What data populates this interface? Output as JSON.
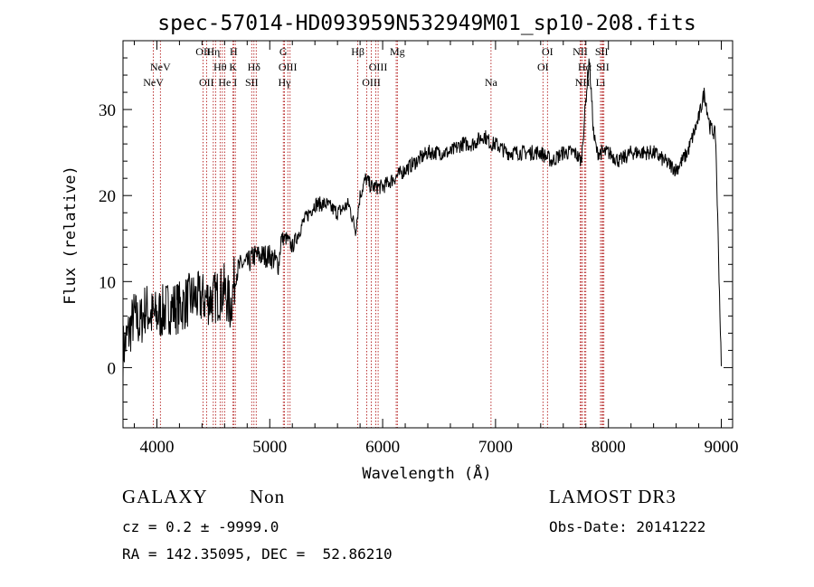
{
  "chart_data": {
    "type": "line",
    "title": "spec-57014-HD093959N532949M01_sp10-208.fits",
    "xlabel": "Wavelength (Å)",
    "ylabel": "Flux (relative)",
    "xlim": [
      3700,
      9100
    ],
    "ylim": [
      -7,
      38
    ],
    "xticks": [
      4000,
      5000,
      6000,
      7000,
      8000,
      9000
    ],
    "yticks": [
      0,
      10,
      20,
      30
    ],
    "series": [
      {
        "name": "spectrum",
        "x": [
          3700,
          3750,
          3800,
          3850,
          3900,
          3950,
          4000,
          4100,
          4200,
          4300,
          4400,
          4500,
          4600,
          4650,
          4700,
          4750,
          4800,
          4860,
          4900,
          5000,
          5080,
          5100,
          5150,
          5200,
          5300,
          5400,
          5500,
          5600,
          5700,
          5760,
          5800,
          5850,
          5900,
          6000,
          6100,
          6200,
          6300,
          6400,
          6500,
          6600,
          6700,
          6800,
          6900,
          6960,
          7000,
          7100,
          7200,
          7300,
          7400,
          7500,
          7600,
          7700,
          7760,
          7800,
          7830,
          7870,
          7900,
          8000,
          8100,
          8200,
          8300,
          8400,
          8500,
          8600,
          8700,
          8800,
          8850,
          8900,
          8950,
          9000
        ],
        "values": [
          2,
          4,
          6,
          5,
          7,
          6,
          6,
          7,
          7,
          8,
          8,
          8,
          9,
          7,
          11,
          12,
          12,
          13,
          13,
          13,
          12,
          15,
          15,
          14,
          17,
          19,
          19,
          18,
          19,
          16,
          20,
          22,
          21,
          21,
          22,
          23,
          24,
          25,
          25,
          25,
          26,
          26,
          27,
          26,
          26,
          25,
          25,
          25,
          25,
          24,
          25,
          25,
          24,
          31,
          36,
          27,
          25,
          25,
          24,
          25,
          25,
          25,
          24,
          23,
          25,
          29,
          32,
          28,
          27,
          0
        ]
      }
    ],
    "lines": [
      {
        "label": "NeV",
        "x": 3969,
        "row": 4
      },
      {
        "label": "NeV",
        "x": 4031,
        "row": 2
      },
      {
        "label": "OII",
        "x": 4410,
        "row": 1
      },
      {
        "label": "OII",
        "x": 4440,
        "row": 4
      },
      {
        "label": "Hη",
        "x": 4500,
        "row": 1
      },
      {
        "label": "Hθ",
        "x": 4560,
        "row": 2
      },
      {
        "label": "He",
        "x": 4600,
        "row": 4
      },
      {
        "label": "H",
        "x": 4680,
        "row": 1
      },
      {
        "label": "K",
        "x": 4675,
        "row": 2
      },
      {
        "label": "I",
        "x": 4695,
        "row": 4
      },
      {
        "label": "Hδ",
        "x": 4860,
        "row": 2
      },
      {
        "label": "SII",
        "x": 4840,
        "row": 4
      },
      {
        "label": "G",
        "x": 5120,
        "row": 1
      },
      {
        "label": "OIII",
        "x": 5160,
        "row": 2
      },
      {
        "label": "Hγ",
        "x": 5130,
        "row": 4
      },
      {
        "label": "Hβ",
        "x": 5780,
        "row": 1
      },
      {
        "label": "OIII",
        "x": 5960,
        "row": 2
      },
      {
        "label": "OIII",
        "x": 5900,
        "row": 4
      },
      {
        "label": "Mg",
        "x": 6130,
        "row": 1
      },
      {
        "label": "Na",
        "x": 6960,
        "row": 4
      },
      {
        "label": "OI",
        "x": 7460,
        "row": 1
      },
      {
        "label": "OI",
        "x": 7420,
        "row": 2
      },
      {
        "label": "NII",
        "x": 7750,
        "row": 1
      },
      {
        "label": "Hα",
        "x": 7790,
        "row": 2
      },
      {
        "label": "NII",
        "x": 7770,
        "row": 4
      },
      {
        "label": "SII",
        "x": 7940,
        "row": 1
      },
      {
        "label": "SII",
        "x": 7950,
        "row": 2
      },
      {
        "label": "Li",
        "x": 7930,
        "row": 4
      }
    ],
    "extra_line_positions": [
      4520,
      4580,
      4880,
      5180,
      5860,
      5940,
      6120,
      7760,
      7800,
      7960
    ]
  },
  "footer": {
    "object_class": "GALAXY",
    "subclass": "Non",
    "survey": "LAMOST DR3",
    "redshift_text": "cz = 0.2 ± -9999.0",
    "obs_date": "Obs-Date: 20141222",
    "coords": "RA = 142.35095, DEC =  52.86210"
  }
}
